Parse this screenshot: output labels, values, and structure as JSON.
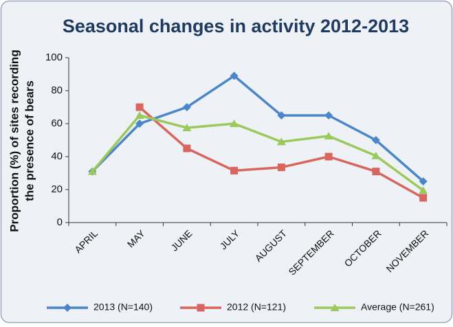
{
  "chart_data": {
    "type": "line",
    "title": "Seasonal changes in activity 2012-2013",
    "ylabel": [
      "Proportion (%) of sites recording",
      "the presence of bears"
    ],
    "categories": [
      "APRIL",
      "MAY",
      "JUNE",
      "JULY",
      "AUGUST",
      "SEPTEMBER",
      "OCTOBER",
      "NOVEMBER"
    ],
    "series": [
      {
        "name": "2013 (N=140)",
        "color": "#4a86c8",
        "marker": "diamond",
        "values": [
          31,
          60,
          70,
          89,
          65,
          65,
          50,
          25
        ]
      },
      {
        "name": "2012 (N=121)",
        "color": "#d9665e",
        "marker": "square",
        "values": [
          null,
          70,
          45,
          31.5,
          33.5,
          40,
          31,
          15
        ]
      },
      {
        "name": "Average (N=261)",
        "color": "#9bc95c",
        "marker": "triangle",
        "values": [
          31,
          65,
          57.5,
          60,
          49,
          52.5,
          40.5,
          19.5
        ]
      }
    ],
    "ylim": [
      0,
      100
    ],
    "yticks": [
      0,
      20,
      40,
      60,
      80,
      100
    ],
    "grid": false,
    "legend": "bottom"
  }
}
